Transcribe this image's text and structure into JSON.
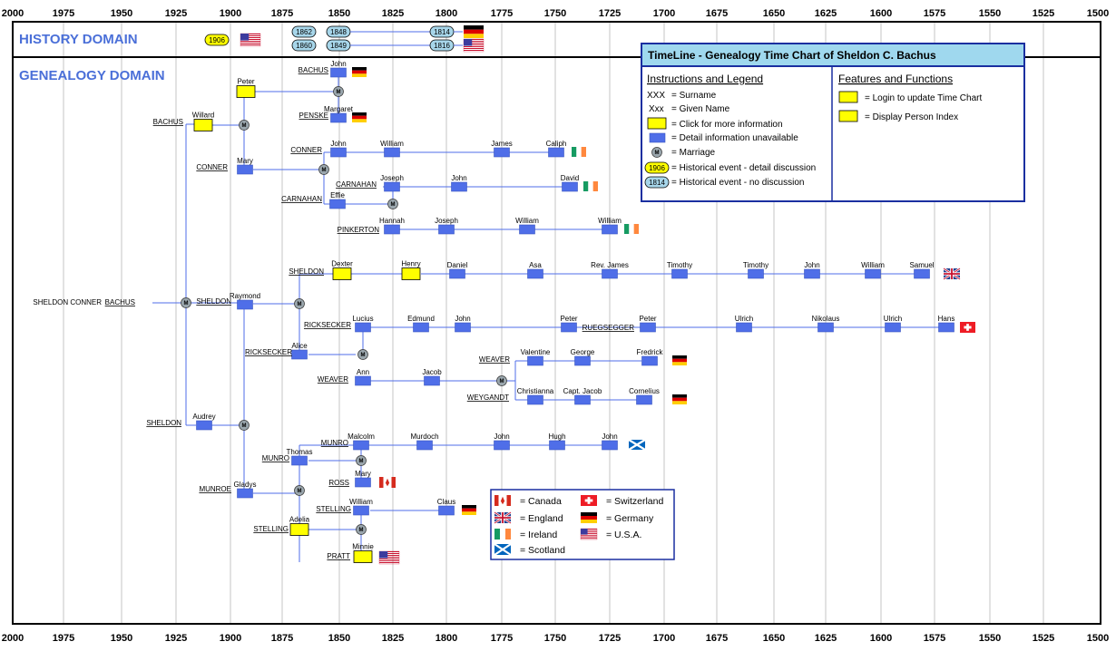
{
  "years": [
    "2000",
    "1975",
    "1950",
    "1925",
    "1900",
    "1875",
    "1850",
    "1825",
    "1800",
    "1775",
    "1750",
    "1725",
    "1700",
    "1675",
    "1650",
    "1625",
    "1600",
    "1575",
    "1550",
    "1525",
    "1500"
  ],
  "domains": {
    "history": "HISTORY  DOMAIN",
    "genealogy": "GENEALOGY  DOMAIN"
  },
  "events": [
    {
      "label": "1906",
      "kind": "detail",
      "flag": "usa"
    },
    {
      "label": "1862",
      "kind": "plain"
    },
    {
      "label": "1848",
      "kind": "plain"
    },
    {
      "label": "1860",
      "kind": "plain"
    },
    {
      "label": "1849",
      "kind": "plain"
    },
    {
      "label": "1814",
      "kind": "plain",
      "flag": "germany"
    },
    {
      "label": "1816",
      "kind": "plain",
      "flag": "usa"
    }
  ],
  "surnames": [
    "BACHUS",
    "PENSKE",
    "BACHUS",
    "CONNER",
    "CONNER",
    "CARNAHAN",
    "CARNAHAN",
    "PINKERTON",
    "SHELDON",
    "SHELDON",
    "BACHUS",
    "RICKSECKER",
    "RUEGSEGGER",
    "RICKSECKER",
    "WEAVER",
    "WEAVER",
    "WEYGANDT",
    "SHELDON",
    "MUNRO",
    "MUNRO",
    "ROSS",
    "MUNROE",
    "STELLING",
    "STELLING",
    "PRATT"
  ],
  "root_label": "SHELDON CONNER",
  "people": [
    {
      "name": "John"
    },
    {
      "name": "Margaret"
    },
    {
      "name": "Peter"
    },
    {
      "name": "Willard"
    },
    {
      "name": "Mary"
    },
    {
      "name": "John"
    },
    {
      "name": "William"
    },
    {
      "name": "James"
    },
    {
      "name": "Caliph"
    },
    {
      "name": "Joseph"
    },
    {
      "name": "John"
    },
    {
      "name": "David"
    },
    {
      "name": "Effie"
    },
    {
      "name": "Hannah"
    },
    {
      "name": "Joseph"
    },
    {
      "name": "William"
    },
    {
      "name": "William"
    },
    {
      "name": "Dexter"
    },
    {
      "name": "Henry"
    },
    {
      "name": "Daniel"
    },
    {
      "name": "Asa"
    },
    {
      "name": "Rev. James"
    },
    {
      "name": "Timothy"
    },
    {
      "name": "Timothy"
    },
    {
      "name": "John"
    },
    {
      "name": "William"
    },
    {
      "name": "Samuel"
    },
    {
      "name": "Raymond"
    },
    {
      "name": "Lucius"
    },
    {
      "name": "Edmund"
    },
    {
      "name": "John"
    },
    {
      "name": "Peter"
    },
    {
      "name": "Peter"
    },
    {
      "name": "Ulrich"
    },
    {
      "name": "Nikolaus"
    },
    {
      "name": "Ulrich"
    },
    {
      "name": "Hans"
    },
    {
      "name": "Alice"
    },
    {
      "name": "Valentine"
    },
    {
      "name": "George"
    },
    {
      "name": "Fredrick"
    },
    {
      "name": "Ann"
    },
    {
      "name": "Jacob"
    },
    {
      "name": "Christianna"
    },
    {
      "name": "Capt. Jacob"
    },
    {
      "name": "Cornelius"
    },
    {
      "name": "Audrey"
    },
    {
      "name": "Malcolm"
    },
    {
      "name": "Murdoch"
    },
    {
      "name": "John"
    },
    {
      "name": "Hugh"
    },
    {
      "name": "John"
    },
    {
      "name": "Thomas"
    },
    {
      "name": "Mary"
    },
    {
      "name": "Gladys"
    },
    {
      "name": "William"
    },
    {
      "name": "Claus"
    },
    {
      "name": "Adelia"
    },
    {
      "name": "Minnie"
    }
  ],
  "legend": {
    "title": "TimeLine -  Genealogy Time Chart  of Sheldon C. Bachus",
    "instructions_head": "Instructions and Legend",
    "features_head": "Features and Functions",
    "sample_surname": "XXX",
    "sample_given": "Xxx",
    "sample_event_detail": "1906",
    "sample_event_plain": "1814",
    "items": [
      "=  Surname",
      "=  Given Name",
      "=  Click for more information",
      "=  Detail information unavailable",
      "=  Marriage",
      "=  Historical event - detail discussion",
      "=  Historical event - no discussion"
    ],
    "features": [
      "=  Login to update Time Chart",
      "=  Display Person Index"
    ]
  },
  "flag_legend": [
    {
      "label": "=  Canada",
      "flag": "canada"
    },
    {
      "label": "=  Switzerland",
      "flag": "switzerland"
    },
    {
      "label": "=  England",
      "flag": "england"
    },
    {
      "label": "=  Germany",
      "flag": "germany"
    },
    {
      "label": "=  Ireland",
      "flag": "ireland"
    },
    {
      "label": "=  U.S.A.",
      "flag": "usa"
    },
    {
      "label": "=  Scotland",
      "flag": "scotland"
    }
  ],
  "colors": {
    "person_box": "#4f6ee8",
    "info_box": "#ffff00",
    "domain_text": "#4a6fd8",
    "legend_header": "#9fd8ee",
    "legend_border": "#1a2fa0"
  }
}
